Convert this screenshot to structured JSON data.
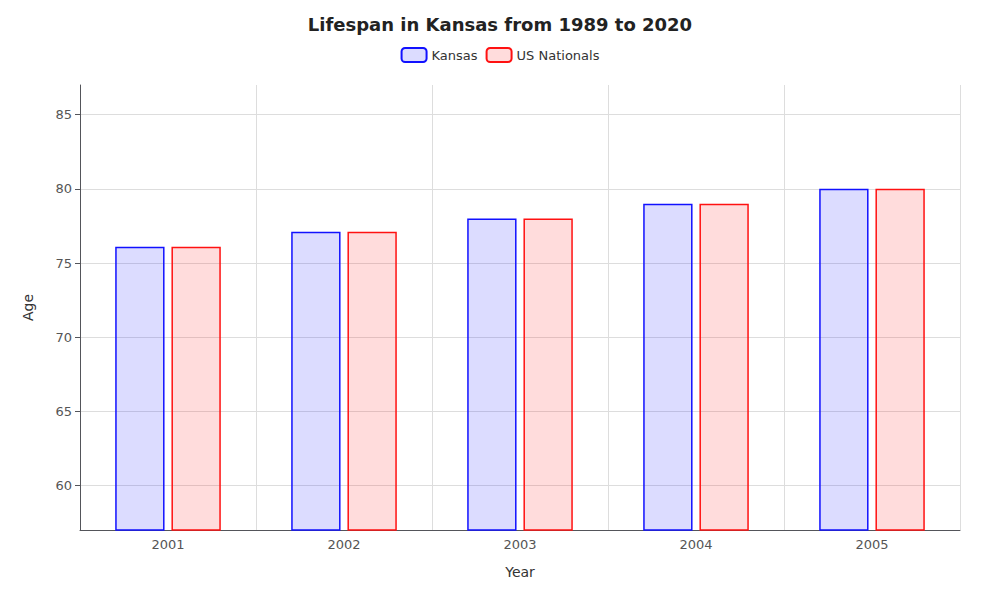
{
  "chart_data": {
    "type": "bar",
    "title": "Lifespan in Kansas from 1989 to 2020",
    "xlabel": "Year",
    "ylabel": "Age",
    "categories": [
      "2001",
      "2002",
      "2003",
      "2004",
      "2005"
    ],
    "series": [
      {
        "name": "Kansas",
        "color": "#1111ff",
        "values": [
          76.1,
          77.1,
          78.0,
          79.0,
          80.0
        ]
      },
      {
        "name": "US Nationals",
        "color": "#ff1111",
        "values": [
          76.1,
          77.1,
          78.0,
          79.0,
          80.0
        ]
      }
    ],
    "ylim": [
      57,
      87
    ],
    "yticks": [
      60,
      65,
      70,
      75,
      80,
      85
    ],
    "grid": true,
    "legend": "top"
  }
}
